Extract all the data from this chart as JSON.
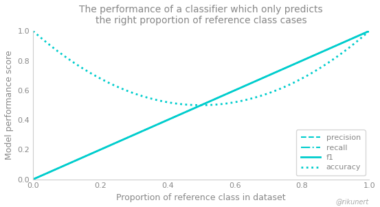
{
  "title": "The performance of a classifier which only predicts\nthe right proportion of reference class cases",
  "xlabel": "Proportion of reference class in dataset",
  "ylabel": "Model performance score",
  "watermark": "@rikunert",
  "line_color": "#00CDCD",
  "background_color": "#ffffff",
  "legend_labels": [
    "precision",
    "recall",
    "f1",
    "accuracy"
  ],
  "legend_linestyles": [
    "--",
    "-.",
    "-",
    ":"
  ],
  "xlim": [
    0.0,
    1.0
  ],
  "ylim": [
    0.0,
    1.0
  ],
  "title_color": "#888888",
  "label_color": "#888888",
  "tick_color": "#888888",
  "watermark_color": "#aaaaaa",
  "spine_color": "#cccccc"
}
